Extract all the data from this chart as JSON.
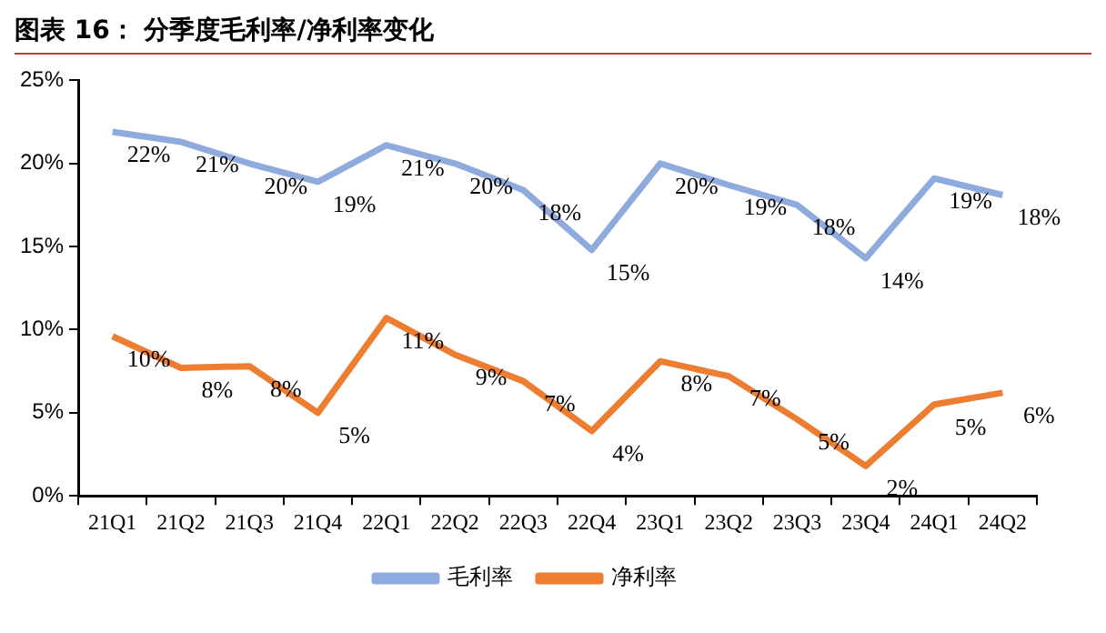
{
  "chart_data": {
    "type": "line",
    "title": "图表 16：  分季度毛利率/净利率变化",
    "categories": [
      "21Q1",
      "21Q2",
      "21Q3",
      "21Q4",
      "22Q1",
      "22Q2",
      "22Q3",
      "22Q4",
      "23Q1",
      "23Q2",
      "23Q3",
      "23Q4",
      "24Q1",
      "24Q2"
    ],
    "series": [
      {
        "name": "毛利率",
        "color": "#8faadc",
        "values": [
          21.9,
          21.3,
          20.0,
          18.9,
          21.1,
          20.0,
          18.4,
          14.8,
          20.0,
          18.7,
          17.5,
          14.3,
          19.1,
          18.1
        ],
        "value_labels": [
          "22%",
          "21%",
          "20%",
          "19%",
          "21%",
          "20%",
          "18%",
          "15%",
          "20%",
          "19%",
          "18%",
          "14%",
          "19%",
          "18%"
        ]
      },
      {
        "name": "净利率",
        "color": "#ed7d31",
        "values": [
          9.6,
          7.7,
          7.8,
          5.0,
          10.7,
          8.5,
          6.9,
          3.9,
          8.1,
          7.2,
          4.6,
          1.8,
          5.5,
          6.2
        ],
        "value_labels": [
          "10%",
          "8%",
          "8%",
          "5%",
          "11%",
          "9%",
          "7%",
          "4%",
          "8%",
          "7%",
          "5%",
          "2%",
          "5%",
          "6%"
        ]
      }
    ],
    "ylim": [
      0,
      25
    ],
    "yticks": [
      {
        "value": 0,
        "label": "0%"
      },
      {
        "value": 5,
        "label": "5%"
      },
      {
        "value": 10,
        "label": "10%"
      },
      {
        "value": 15,
        "label": "15%"
      },
      {
        "value": 20,
        "label": "20%"
      },
      {
        "value": 25,
        "label": "25%"
      }
    ],
    "grid": false,
    "legend": "bottom",
    "marker": "none",
    "line_style": "solid"
  }
}
